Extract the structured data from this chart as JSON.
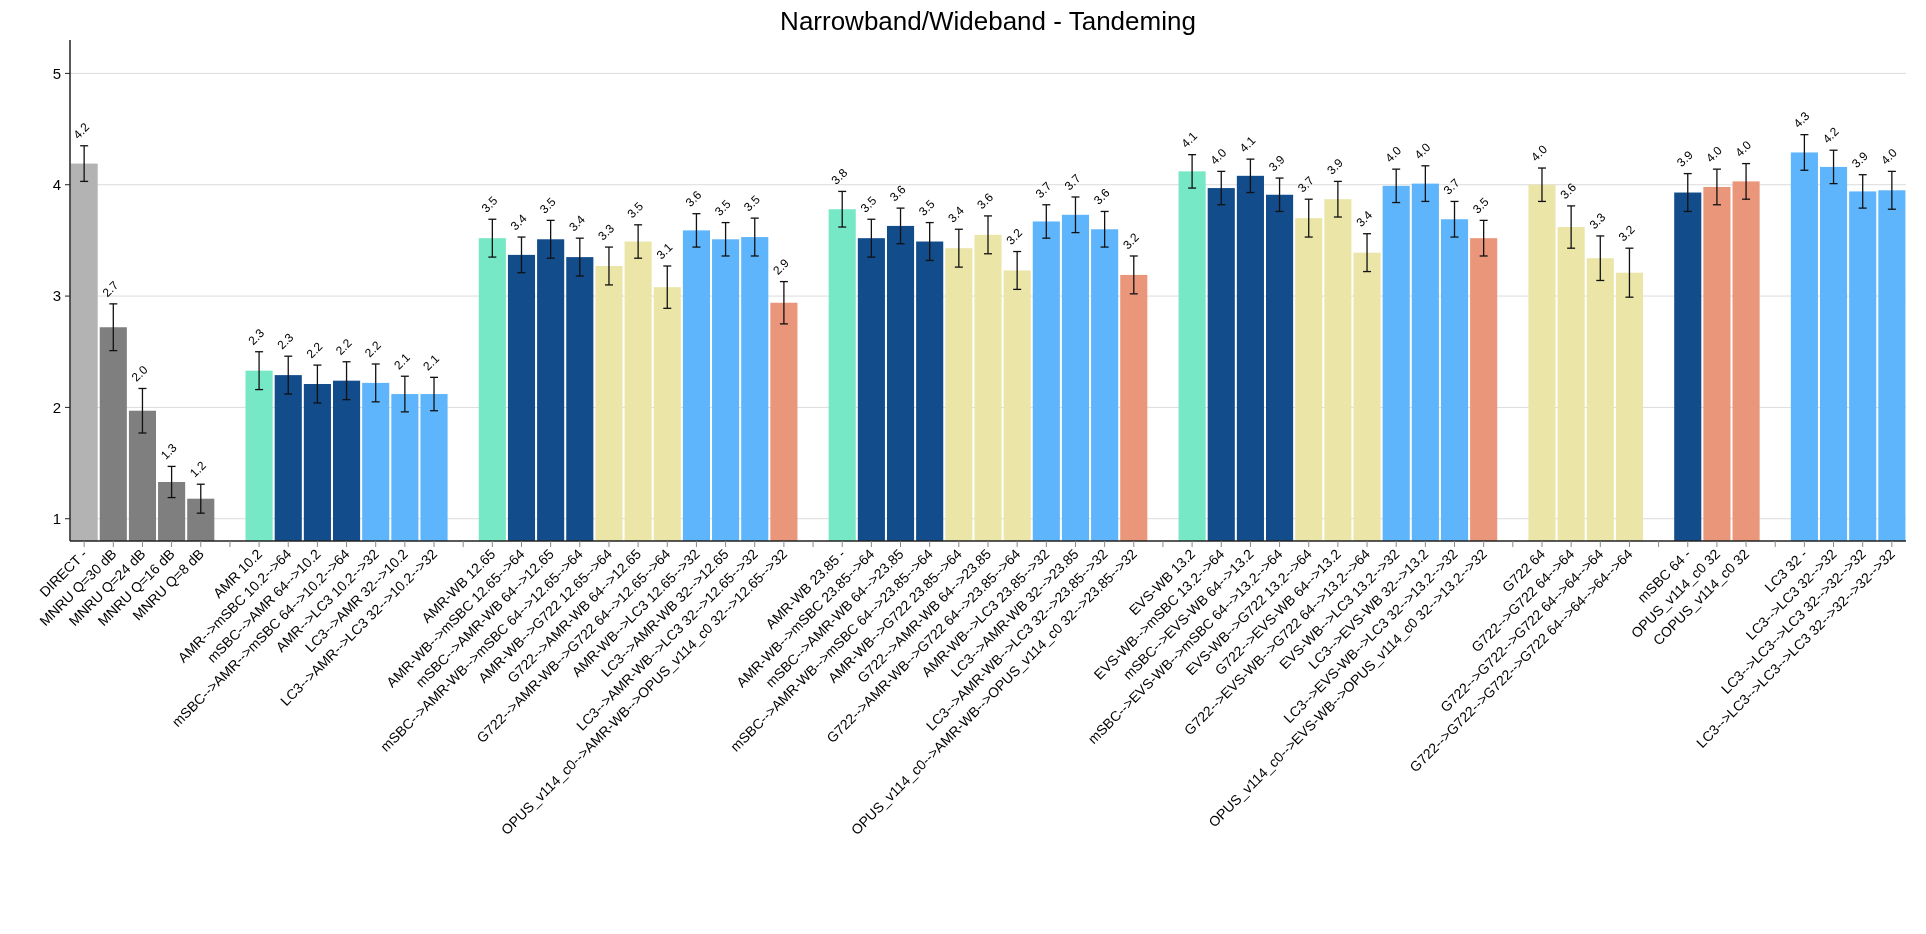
{
  "chart_data": {
    "type": "bar",
    "title": "Narrowband/Wideband - Tandeming",
    "categories": [
      "DIRECT -",
      "MNRU Q=30 dB",
      "MNRU Q=24 dB",
      "MNRU Q=16 dB",
      "MNRU Q=8 dB",
      null,
      "AMR 10.2",
      "AMR-->mSBC 10.2-->64",
      "mSBC-->AMR 64-->10.2",
      "mSBC-->AMR-->mSBC 64-->10.2-->64",
      "AMR-->LC3 10.2-->32",
      "LC3-->AMR 32-->10.2",
      "LC3-->AMR-->LC3 32-->10.2-->32",
      null,
      "AMR-WB 12.65",
      "AMR-WB-->mSBC 12.65-->64",
      "mSBC-->AMR-WB 64-->12.65",
      "mSBC-->AMR-WB-->mSBC 64-->12.65-->64",
      "AMR-WB-->G722 12.65-->64",
      "G722-->AMR-WB 64-->12.65",
      "G722-->AMR-WB-->G722 64-->12.65-->64",
      "AMR-WB-->LC3 12.65-->32",
      "LC3-->AMR-WB 32-->12.65",
      "LC3-->AMR-WB-->LC3 32-->12.65-->32",
      "OPUS_v114_c0-->AMR-WB-->OPUS_v114_c0 32-->12.65-->32",
      null,
      "AMR-WB 23.85 -",
      "AMR-WB-->mSBC 23.85-->64",
      "mSBC-->AMR-WB 64-->23.85",
      "mSBC-->AMR-WB-->mSBC 64-->23.85-->64",
      "AMR-WB-->G722 23.85-->64",
      "G722-->AMR-WB 64-->23.85",
      "G722-->AMR-WB-->G722 64-->23.85-->64",
      "AMR-WB-->LC3 23.85-->32",
      "LC3-->AMR-WB 32-->23.85",
      "LC3-->AMR-WB-->LC3 32-->23.85-->32",
      "OPUS_v114_c0-->AMR-WB-->OPUS_v114_c0 32-->23.85-->32",
      null,
      "EVS-WB 13.2",
      "EVS-WB-->mSBC 13.2-->64",
      "mSBC-->EVS-WB 64-->13.2",
      "mSBC-->EVS-WB-->mSBC 64-->13.2-->64",
      "EVS-WB-->G722 13.2-->64",
      "G722-->EVS-WB 64-->13.2",
      "G722-->EVS-WB-->G722 64-->13.2-->64",
      "EVS-WB-->LC3 13.2-->32",
      "LC3-->EVS-WB 32-->13.2",
      "LC3-->EVS-WB-->LC3 32-->13.2-->32",
      "OPUS_v114_c0-->EVS-WB-->OPUS_v114_c0 32-->13.2-->32",
      null,
      "G722 64",
      "G722-->G722 64-->64",
      "G722-->G722-->G722 64-->64-->64",
      "G722-->G722-->G722-->G722 64-->64-->64-->64",
      null,
      "mSBC 64 -",
      "OPUS_v114_c0 32",
      "COPUS_v114_c0 32",
      null,
      "LC3 32 -",
      "LC3-->LC3 32-->32",
      "LC3-->LC3-->LC3 32-->32-->32",
      "LC3-->LC3-->LC3-->LC3 32-->32-->32-->32"
    ],
    "values": [
      4.19,
      2.72,
      1.97,
      1.33,
      1.18,
      null,
      2.33,
      2.29,
      2.21,
      2.24,
      2.22,
      2.12,
      2.12,
      null,
      3.52,
      3.37,
      3.51,
      3.35,
      3.27,
      3.49,
      3.08,
      3.59,
      3.51,
      3.53,
      2.94,
      null,
      3.78,
      3.52,
      3.63,
      3.49,
      3.43,
      3.55,
      3.23,
      3.67,
      3.73,
      3.6,
      3.19,
      null,
      4.12,
      3.97,
      4.08,
      3.91,
      3.7,
      3.87,
      3.39,
      3.99,
      4.01,
      3.69,
      3.52,
      null,
      4.0,
      3.62,
      3.34,
      3.21,
      null,
      3.93,
      3.98,
      4.03,
      null,
      4.29,
      4.16,
      3.94,
      3.95
    ],
    "errors": [
      0.16,
      0.21,
      0.2,
      0.14,
      0.13,
      null,
      0.17,
      0.17,
      0.17,
      0.17,
      0.17,
      0.16,
      0.15,
      null,
      0.17,
      0.16,
      0.17,
      0.17,
      0.17,
      0.15,
      0.19,
      0.15,
      0.15,
      0.17,
      0.19,
      null,
      0.16,
      0.17,
      0.16,
      0.17,
      0.17,
      0.17,
      0.17,
      0.15,
      0.16,
      0.16,
      0.17,
      null,
      0.15,
      0.15,
      0.15,
      0.15,
      0.17,
      0.16,
      0.17,
      0.15,
      0.16,
      0.16,
      0.16,
      null,
      0.15,
      0.19,
      0.2,
      0.22,
      null,
      0.17,
      0.16,
      0.16,
      null,
      0.16,
      0.15,
      0.15,
      0.17
    ],
    "value_labels": [
      "4.2",
      "2.7",
      "2.0",
      "1.3",
      "1.2",
      null,
      "2.3",
      "2.3",
      "2.2",
      "2.2",
      "2.2",
      "2.1",
      "2.1",
      null,
      "3.5",
      "3.4",
      "3.5",
      "3.4",
      "3.3",
      "3.5",
      "3.1",
      "3.6",
      "3.5",
      "3.5",
      "2.9",
      null,
      "3.8",
      "3.5",
      "3.6",
      "3.5",
      "3.4",
      "3.6",
      "3.2",
      "3.7",
      "3.7",
      "3.6",
      "3.2",
      null,
      "4.1",
      "4.0",
      "4.1",
      "3.9",
      "3.7",
      "3.9",
      "3.4",
      "4.0",
      "4.0",
      "3.7",
      "3.5",
      null,
      "4.0",
      "3.6",
      "3.3",
      "3.2",
      null,
      "3.9",
      "4.0",
      "4.0",
      null,
      "4.3",
      "4.2",
      "3.9",
      "4.0"
    ],
    "colors": [
      "#b3b3b3",
      "#7f7f7f",
      "#7f7f7f",
      "#7f7f7f",
      "#7f7f7f",
      null,
      "#77e8c5",
      "#124c8a",
      "#124c8a",
      "#124c8a",
      "#5eb5fc",
      "#5eb5fc",
      "#5eb5fc",
      null,
      "#77e8c5",
      "#124c8a",
      "#124c8a",
      "#124c8a",
      "#ebe6a8",
      "#ebe6a8",
      "#ebe6a8",
      "#5eb5fc",
      "#5eb5fc",
      "#5eb5fc",
      "#e9967a",
      null,
      "#77e8c5",
      "#124c8a",
      "#124c8a",
      "#124c8a",
      "#ebe6a8",
      "#ebe6a8",
      "#ebe6a8",
      "#5eb5fc",
      "#5eb5fc",
      "#5eb5fc",
      "#e9967a",
      null,
      "#77e8c5",
      "#124c8a",
      "#124c8a",
      "#124c8a",
      "#ebe6a8",
      "#ebe6a8",
      "#ebe6a8",
      "#5eb5fc",
      "#5eb5fc",
      "#5eb5fc",
      "#e9967a",
      null,
      "#ebe6a8",
      "#ebe6a8",
      "#ebe6a8",
      "#ebe6a8",
      null,
      "#124c8a",
      "#e9967a",
      "#e9967a",
      null,
      "#5eb5fc",
      "#5eb5fc",
      "#5eb5fc",
      "#5eb5fc"
    ],
    "ylim": [
      0.8,
      5.3
    ],
    "yticks": [
      1,
      2,
      3,
      4,
      5
    ],
    "grid": "y"
  }
}
